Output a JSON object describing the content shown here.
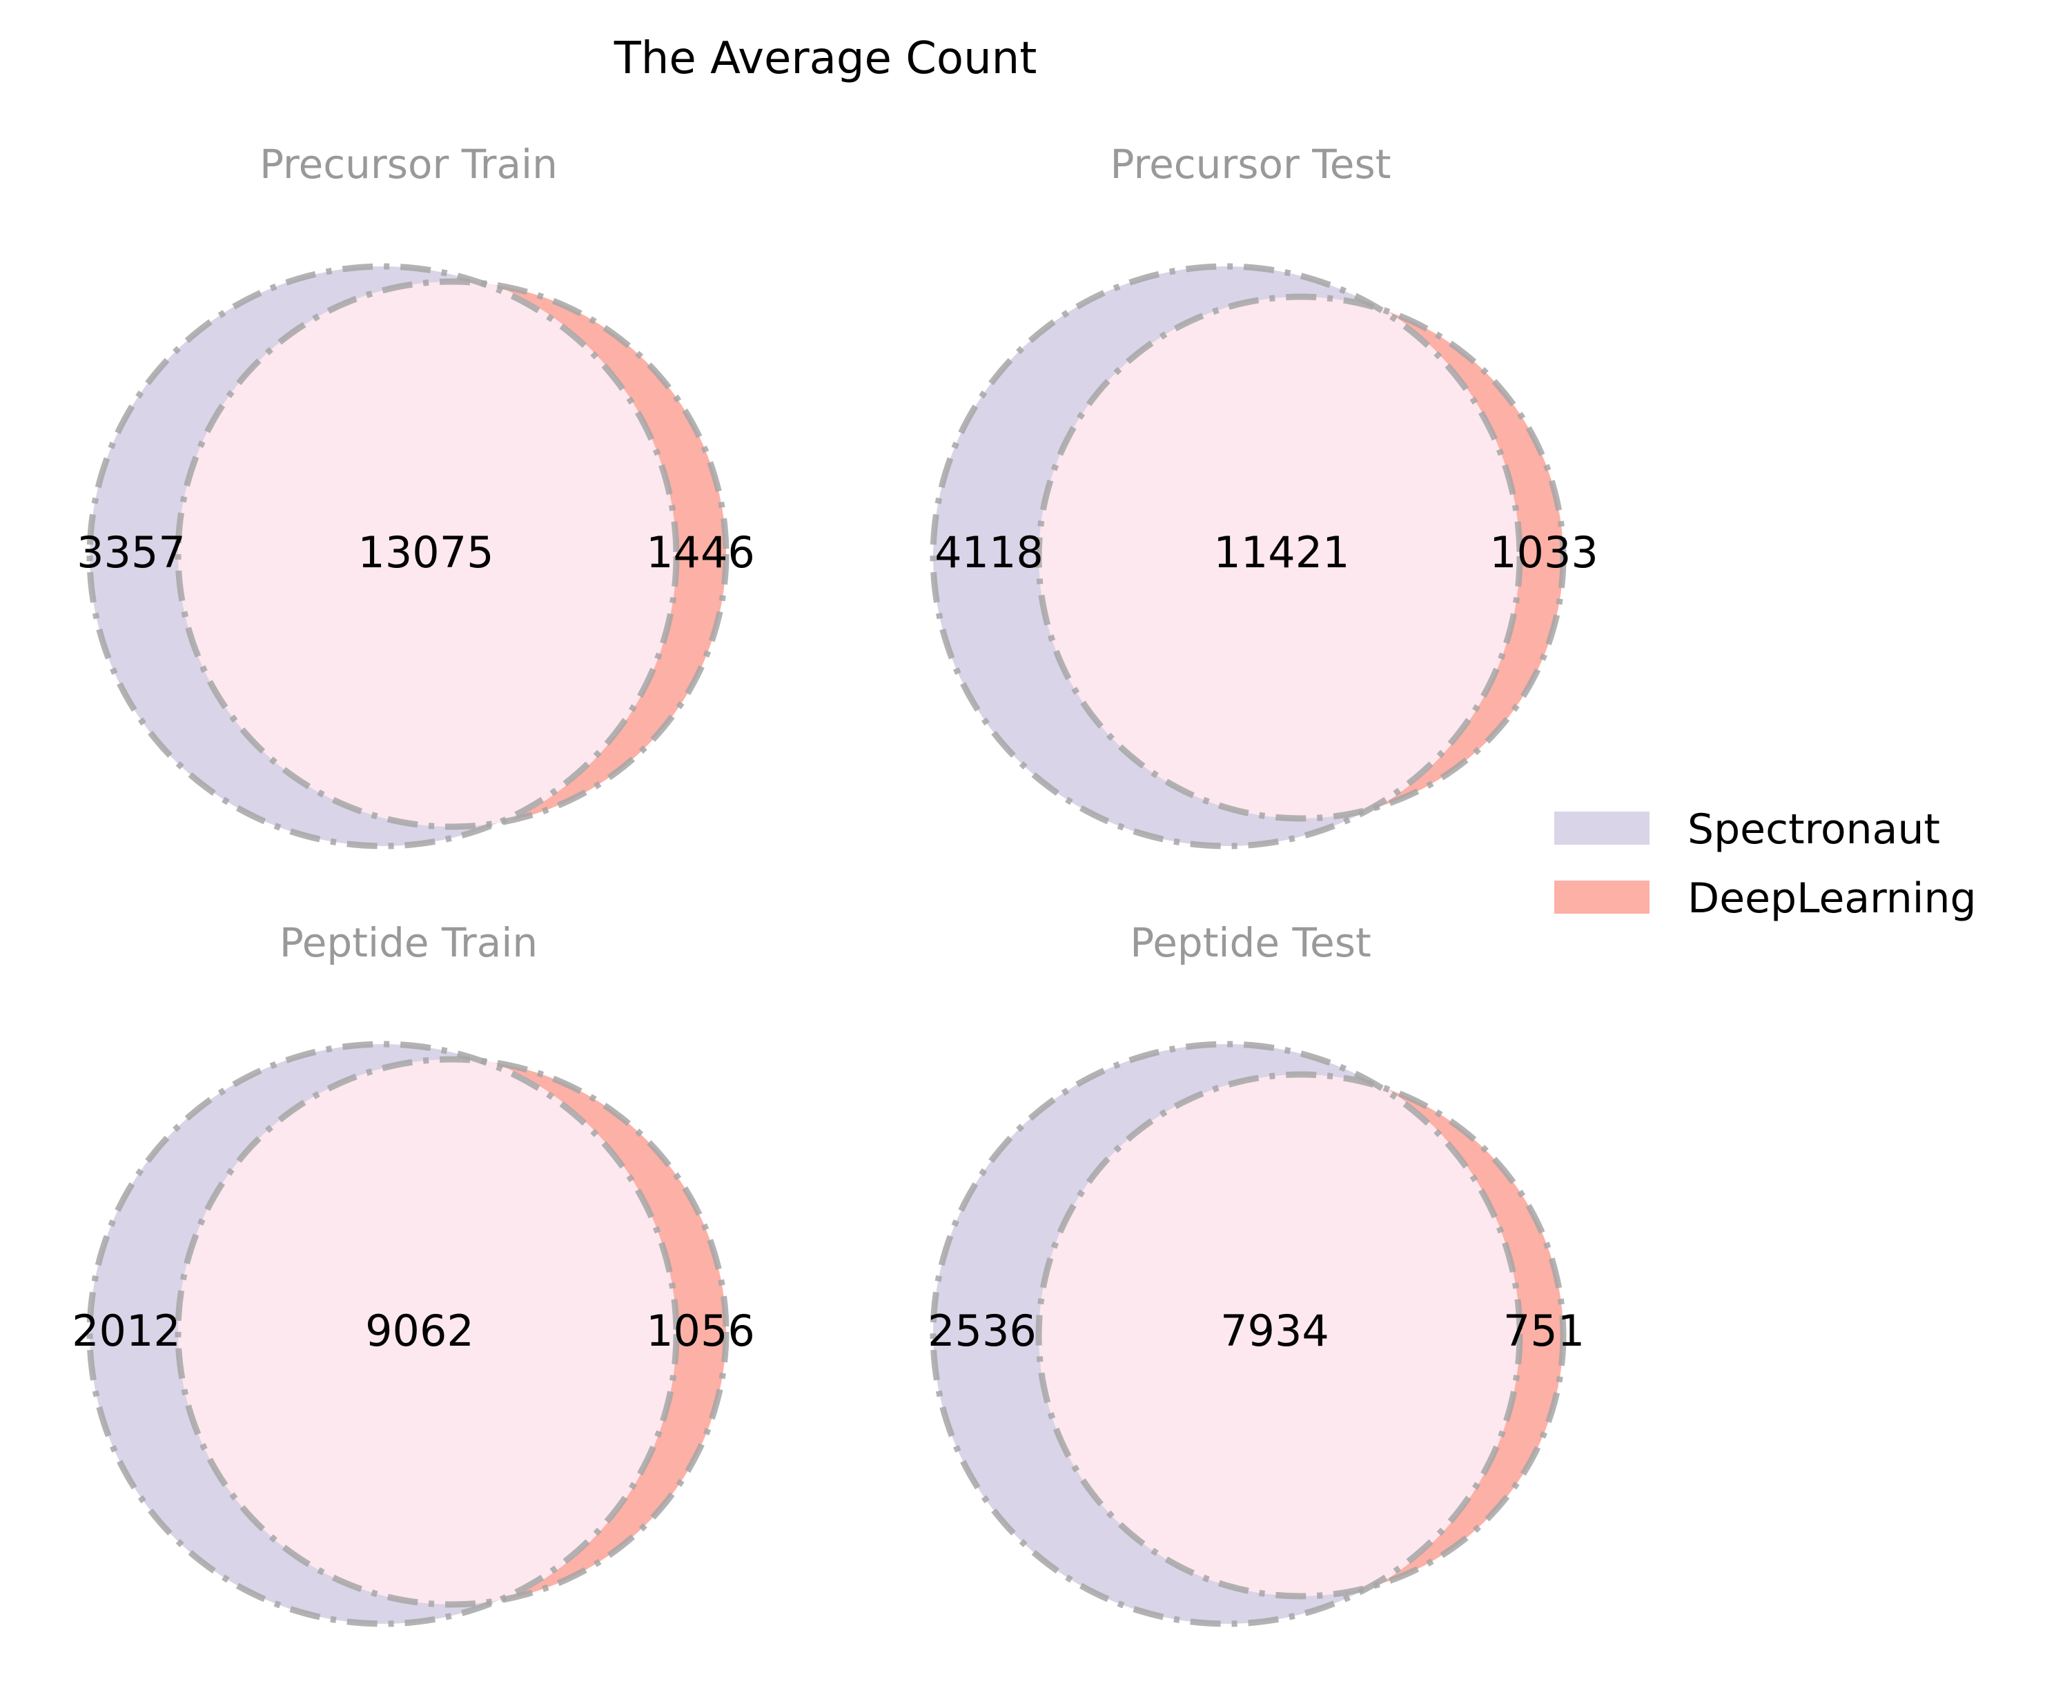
{
  "chart_data": {
    "type": "venn",
    "title": "The Average Count",
    "legend": {
      "placement": "right",
      "entries": [
        {
          "name": "Spectronaut",
          "color": "#d9d4e8"
        },
        {
          "name": "DeepLearning",
          "color": "#fcb0a6"
        }
      ]
    },
    "colors": {
      "spectronaut": "#d9d4e8",
      "deeplearning": "#fcb0a6",
      "overlap": "#fde8ef",
      "edge": "#a6a6a6",
      "subtitle": "#999999"
    },
    "panels": [
      {
        "title": "Precursor Train",
        "only_spectronaut": "3357",
        "overlap": "13075",
        "only_deeplearning": "1446"
      },
      {
        "title": "Precursor Test",
        "only_spectronaut": "4118",
        "overlap": "11421",
        "only_deeplearning": "1033"
      },
      {
        "title": "Peptide Train",
        "only_spectronaut": "2012",
        "overlap": "9062",
        "only_deeplearning": "1056"
      },
      {
        "title": "Peptide Test",
        "only_spectronaut": "2536",
        "overlap": "7934",
        "only_deeplearning": "751"
      }
    ]
  }
}
